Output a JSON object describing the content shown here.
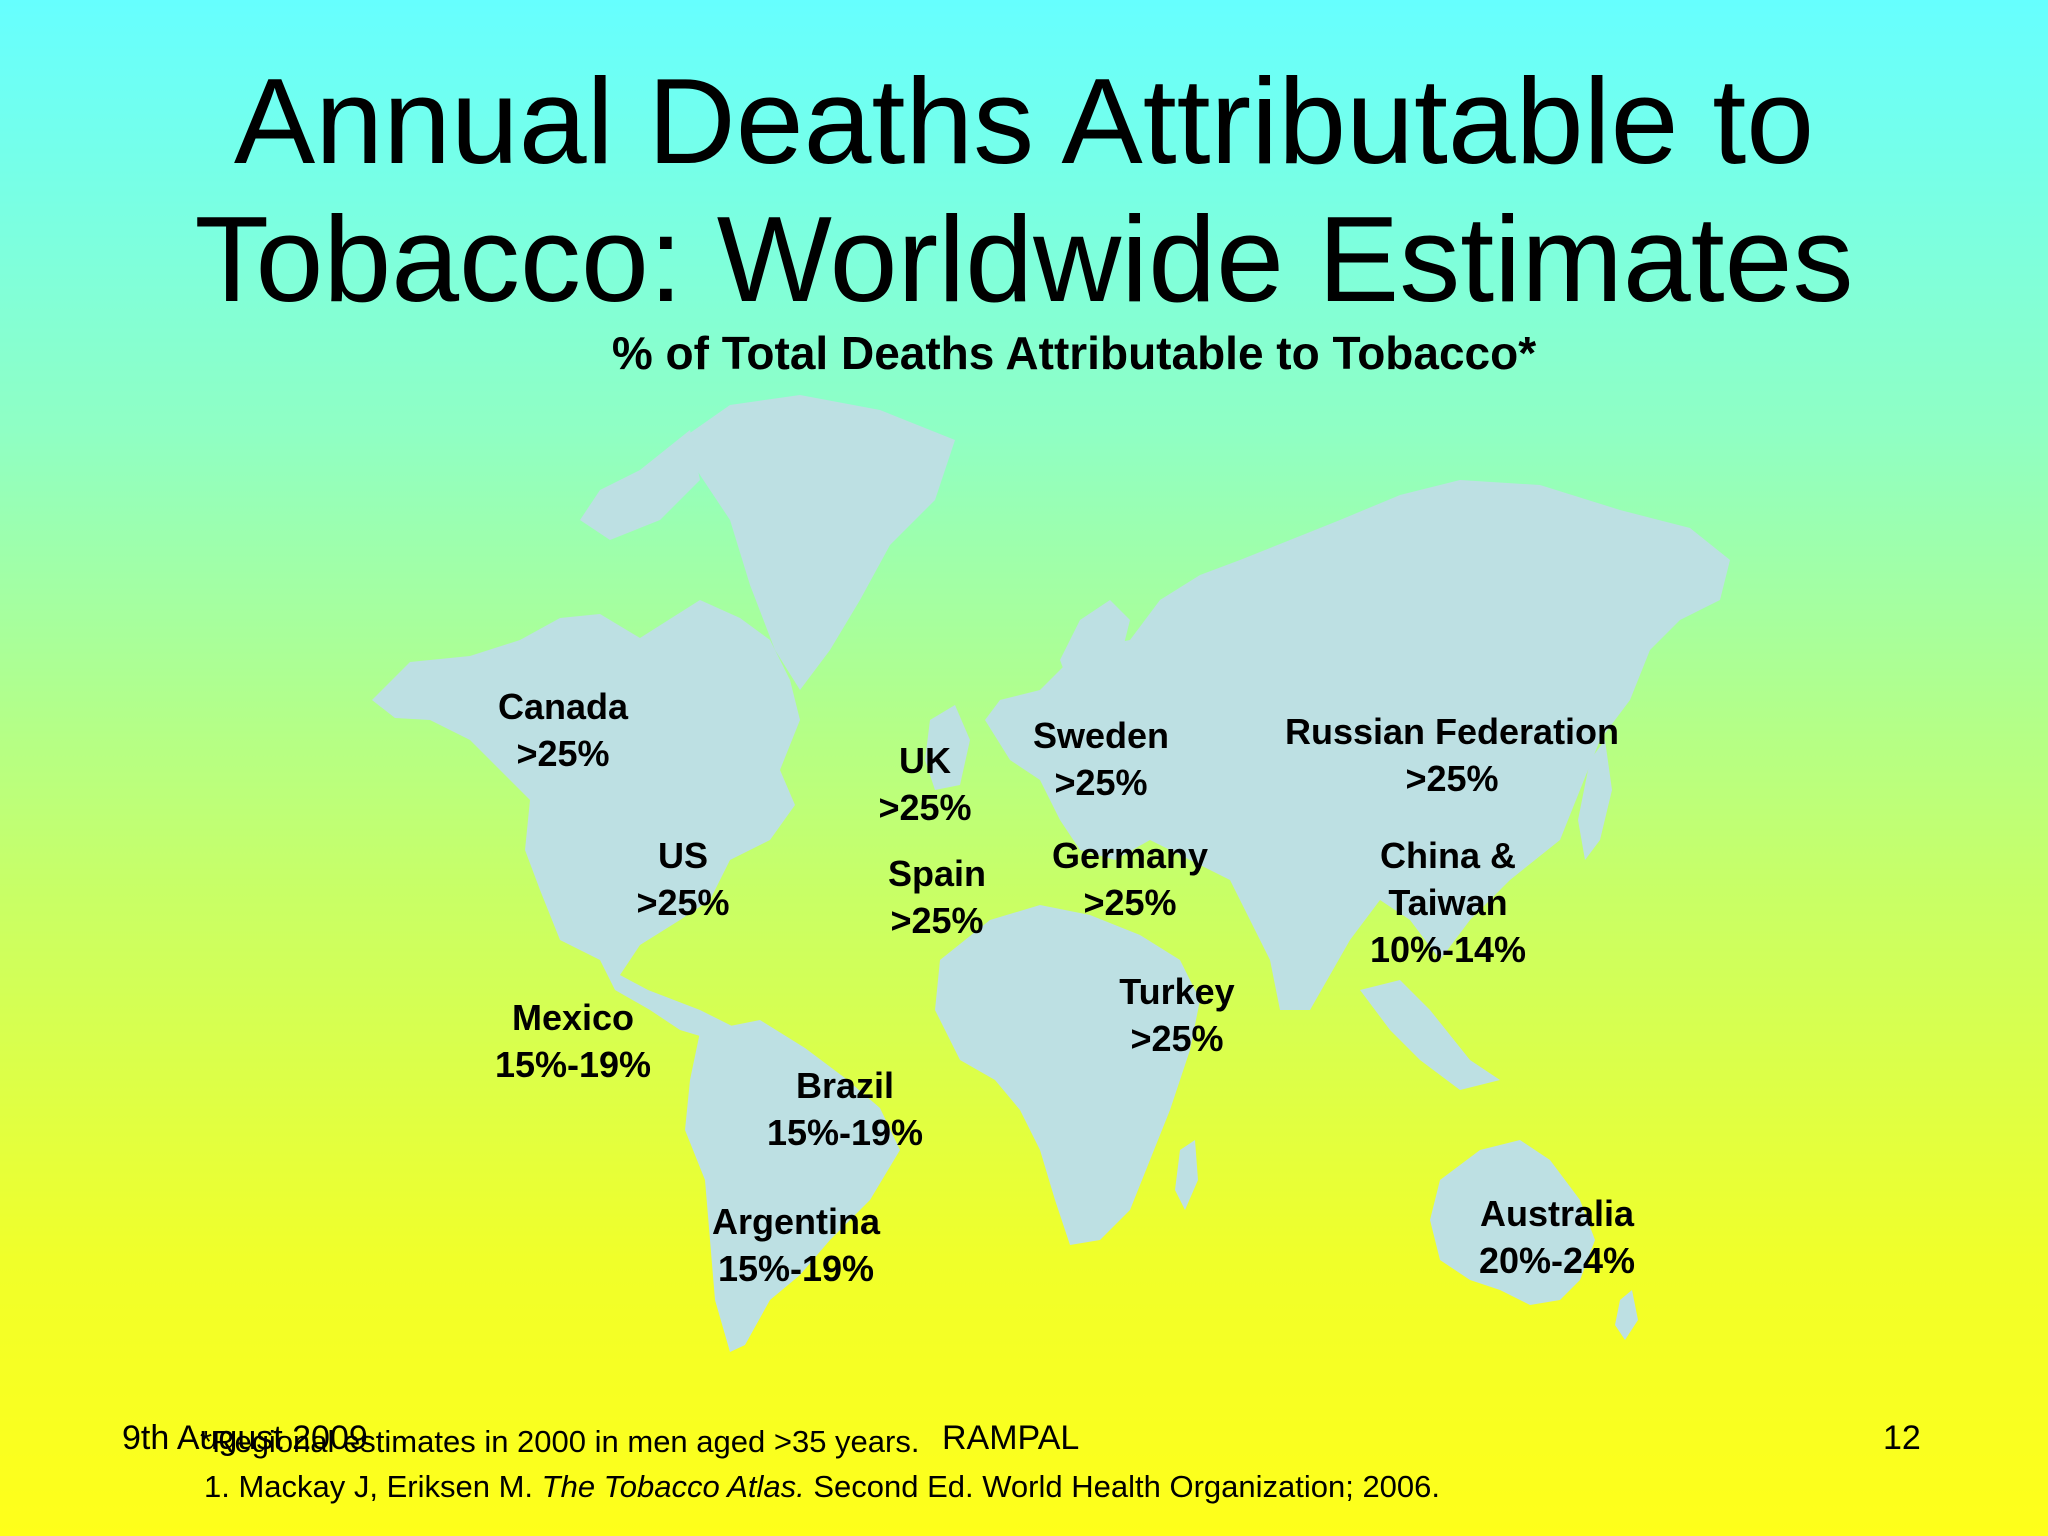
{
  "title": {
    "line1": "Annual Deaths Attributable to",
    "line2": "Tobacco: Worldwide Estimates"
  },
  "subtitle": "% of Total Deaths Attributable to Tobacco*",
  "colors": {
    "map_land": "#bde0e3",
    "background_top": "#66ffff",
    "background_bottom": "#ffff1a"
  },
  "regions": [
    {
      "name": "Canada",
      "value": ">25%"
    },
    {
      "name": "US",
      "value": ">25%"
    },
    {
      "name": "Mexico",
      "value": "15%-19%"
    },
    {
      "name": "Brazil",
      "value": "15%-19%"
    },
    {
      "name": "Argentina",
      "value": "15%-19%"
    },
    {
      "name": "UK",
      "value": ">25%"
    },
    {
      "name": "Spain",
      "value": ">25%"
    },
    {
      "name": "Sweden",
      "value": ">25%"
    },
    {
      "name": "Germany",
      "value": ">25%"
    },
    {
      "name": "Turkey",
      "value": ">25%"
    },
    {
      "name": "Russian Federation",
      "value": ">25%"
    },
    {
      "name_line1": "China &",
      "name_line2": "Taiwan",
      "value": "10%-14%"
    },
    {
      "name": "Australia",
      "value": "20%-24%"
    }
  ],
  "footnote": {
    "regional": "*Regional estimates in 2000 in men aged >35 years.",
    "citation_prefix": "1. Mackay J, Eriksen M. ",
    "citation_title": "The Tobacco Atlas.",
    "citation_suffix": " Second Ed. World Health Organization; 2006."
  },
  "footer": {
    "date": "9th August 2009",
    "author": "RAMPAL",
    "page": "12"
  }
}
